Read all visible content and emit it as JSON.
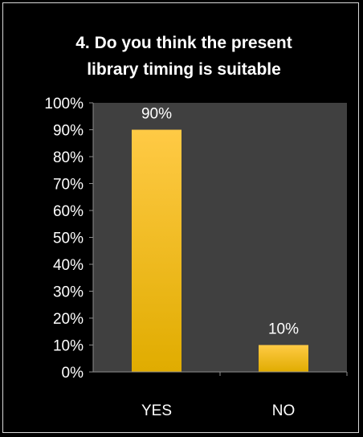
{
  "chart_data": {
    "type": "bar",
    "title_lines": [
      "4. Do you think the present",
      "library timing is suitable"
    ],
    "xlabel": "",
    "ylabel": "",
    "categories": [
      "YES",
      "NO"
    ],
    "values": [
      0.9,
      0.1
    ],
    "data_labels": [
      "90%",
      "10%"
    ],
    "y_ticks": [
      "0%",
      "10%",
      "20%",
      "30%",
      "40%",
      "50%",
      "60%",
      "70%",
      "80%",
      "90%",
      "100%"
    ],
    "ylim": [
      0,
      1
    ],
    "grid": false,
    "legend": "none",
    "colors": {
      "background": "#000000",
      "plot_area": "#404040",
      "bar_top": "#ffca45",
      "bar_bottom": "#e0ac00",
      "text": "#ffffff",
      "axis": "#8c8c8c",
      "frame": "#d9d9d9"
    }
  }
}
